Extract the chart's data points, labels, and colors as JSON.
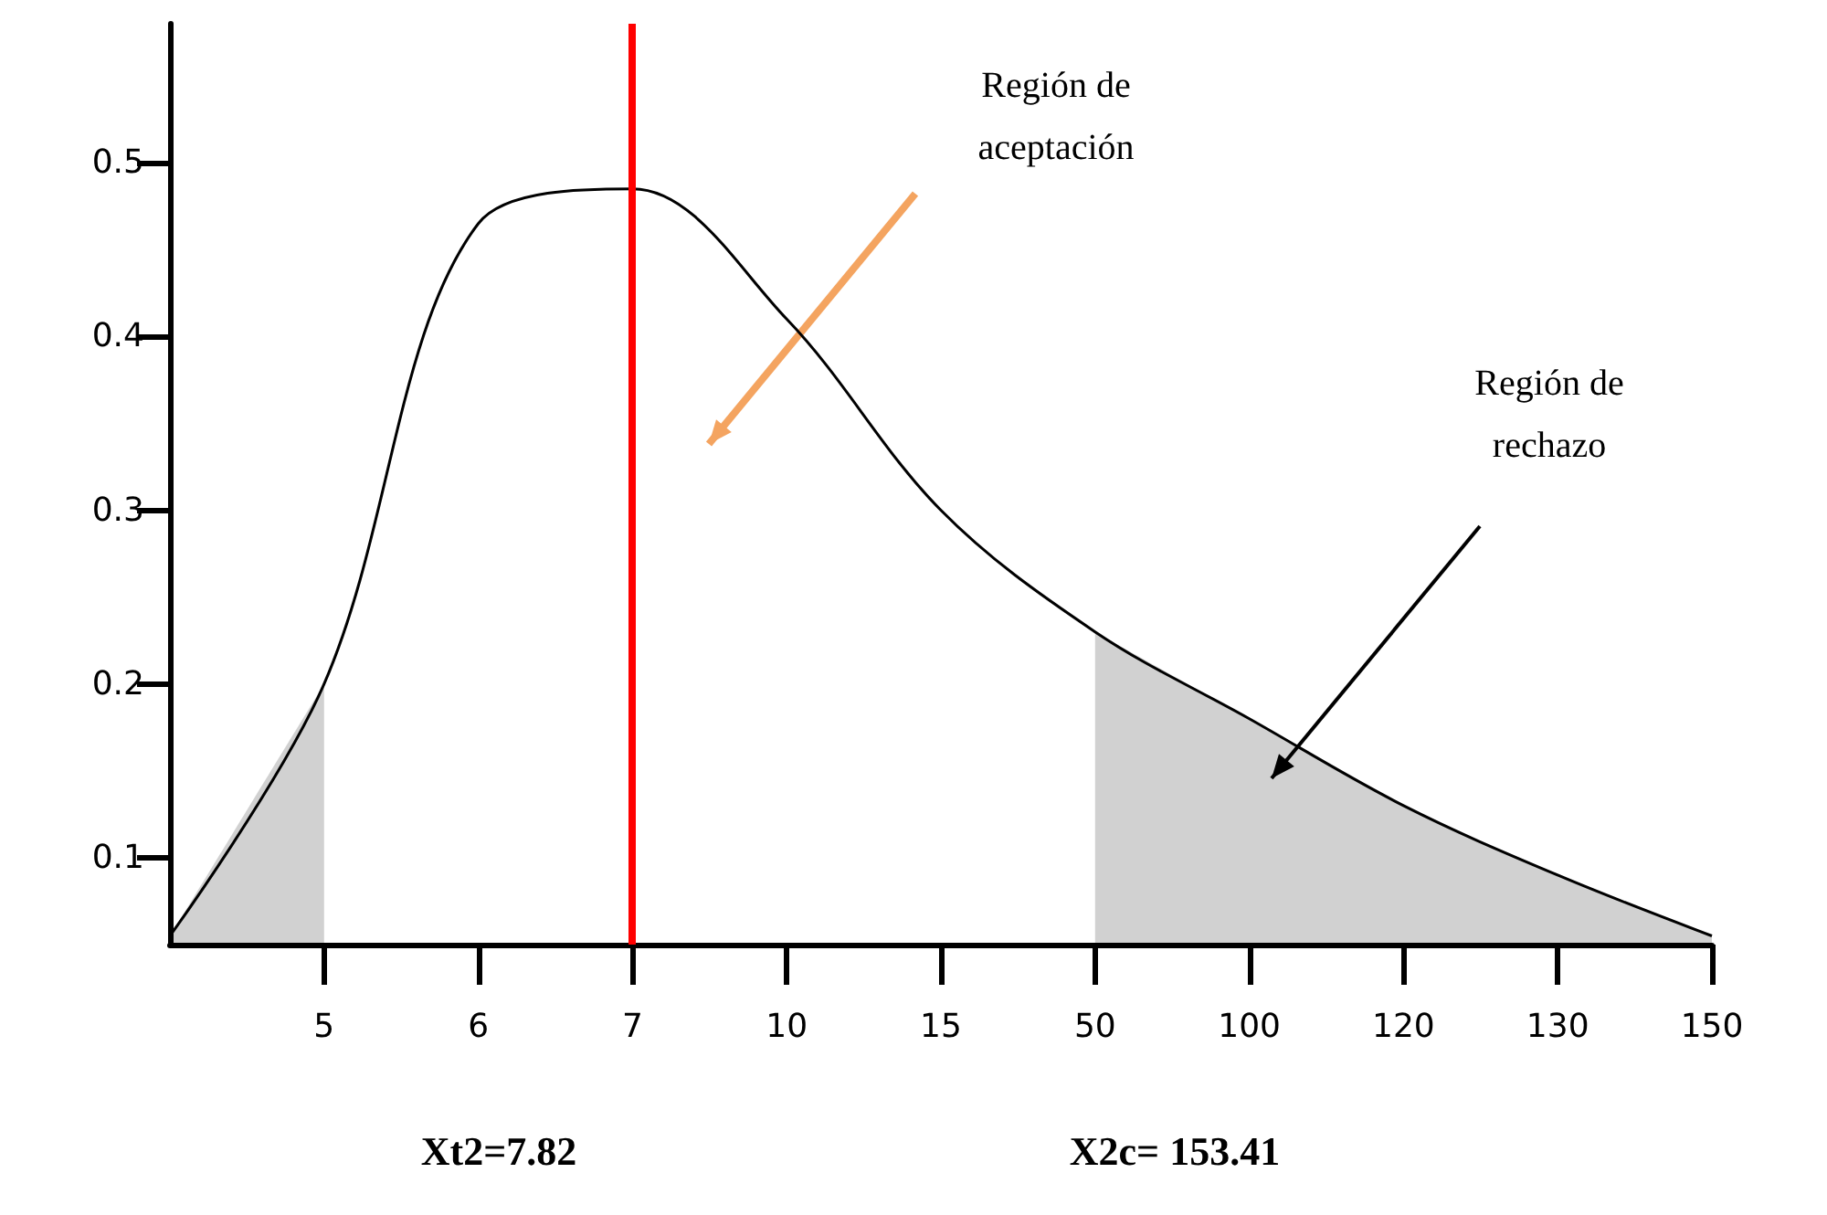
{
  "chart_data": {
    "type": "line",
    "categories": [
      null,
      "5",
      "6",
      "7",
      "10",
      "15",
      "50",
      "100",
      "120",
      "130",
      "150"
    ],
    "series": [
      {
        "type": "line",
        "color": "#000000",
        "values": [
          0.055,
          0.2,
          0.465,
          0.485,
          0.41,
          0.3,
          0.23,
          0.18,
          0.13,
          0.09,
          0.055
        ]
      },
      {
        "type": "area",
        "color": "#000000",
        "values": [
          0.055,
          0.2,
          null,
          null,
          null,
          null,
          null,
          null,
          null,
          null,
          null
        ]
      },
      {
        "type": "area",
        "color": "#000000",
        "values": [
          null,
          null,
          null,
          null,
          null,
          null,
          0.23,
          0.18,
          0.13,
          0.09,
          0.055
        ]
      }
    ],
    "ylim": [
      0.05,
      0.58
    ],
    "yticks": [
      0.1,
      0.2,
      0.3,
      0.4,
      0.5
    ],
    "ref_lines": [
      {
        "axis": "x",
        "value": "7",
        "color": "#ff0000"
      }
    ],
    "annotations": [
      "Región de aceptación",
      "Región de rechazo",
      "Xt2=7.82",
      "X2c= 153.41"
    ],
    "grid": false,
    "marker": "none"
  }
}
